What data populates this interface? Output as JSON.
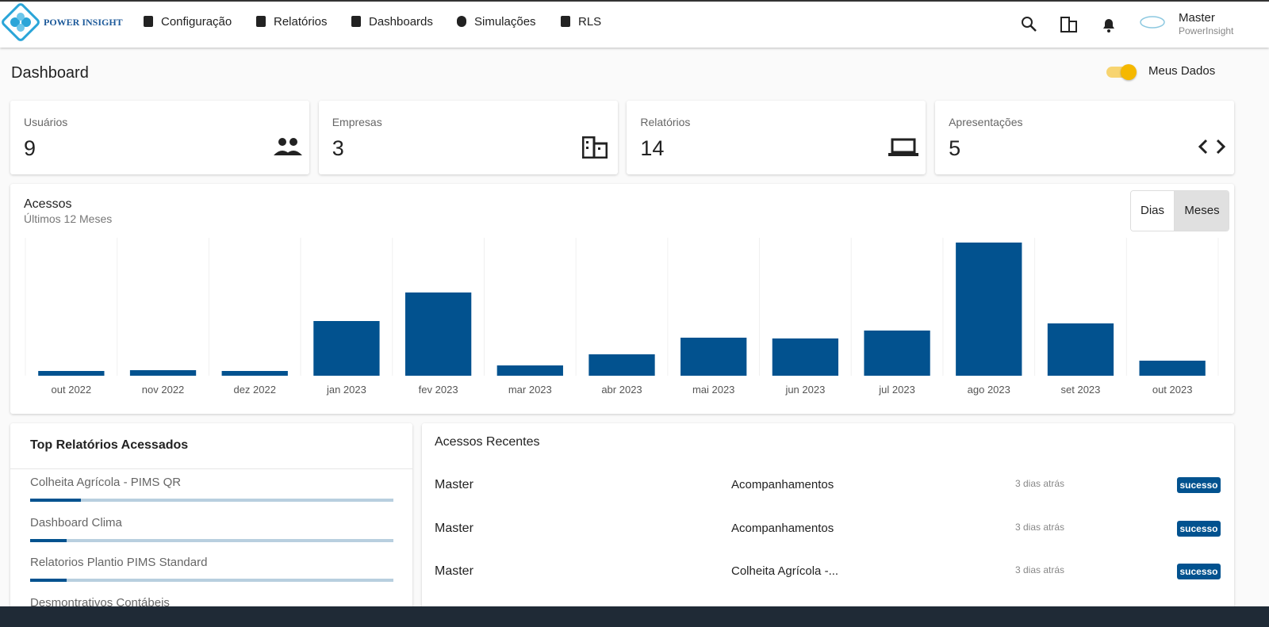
{
  "header": {
    "logo_text": "POWER INSIGHT",
    "nav": [
      "Configuração",
      "Relatórios",
      "Dashboards",
      "Simulações",
      "RLS"
    ],
    "user_name": "Master",
    "user_org": "PowerInsight"
  },
  "page": {
    "title": "Dashboard",
    "toggle_label": "Meus Dados",
    "toggle_on": true
  },
  "cards": [
    {
      "label": "Usuários",
      "value": 9
    },
    {
      "label": "Empresas",
      "value": 3
    },
    {
      "label": "Relatórios",
      "value": 14
    },
    {
      "label": "Apresentações",
      "value": 5
    }
  ],
  "chart_data": {
    "type": "bar",
    "title": "Acessos",
    "subtitle": "Últimos 12 Meses",
    "categories": [
      "out 2022",
      "nov 2022",
      "dez 2022",
      "jan 2023",
      "fev 2023",
      "mar 2023",
      "abr 2023",
      "mai 2023",
      "jun 2023",
      "jul 2023",
      "ago 2023",
      "set 2023",
      "out 2023"
    ],
    "values": [
      6,
      7,
      6,
      69,
      105,
      13,
      27,
      48,
      47,
      57,
      168,
      66,
      19
    ],
    "color": "#02528f",
    "ylim": [
      0,
      174
    ],
    "grid": true
  },
  "range_buttons": {
    "options": [
      "Dias",
      "Meses"
    ],
    "active": 1
  },
  "top_reports": {
    "title": "Top Relatórios Acessados",
    "xlim": [
      0,
      100
    ],
    "items": [
      {
        "name": "Colheita Agrícola - PIMS QR",
        "value": 14
      },
      {
        "name": "Dashboard Clima",
        "value": 10
      },
      {
        "name": "Relatorios Plantio PIMS Standard",
        "value": 10
      },
      {
        "name": "Desmontrativos Contábeis"
      }
    ]
  },
  "recent": {
    "title": "Acessos Recentes",
    "rows": [
      {
        "user": "Master",
        "report": "Acompanhamentos",
        "time": "3 dias atrás",
        "status": "sucesso"
      },
      {
        "user": "Master",
        "report": "Acompanhamentos",
        "time": "3 dias atrás",
        "status": "sucesso"
      },
      {
        "user": "Master",
        "report": "Colheita Agrícola -...",
        "time": "3 dias atrás",
        "status": "sucesso"
      }
    ]
  }
}
